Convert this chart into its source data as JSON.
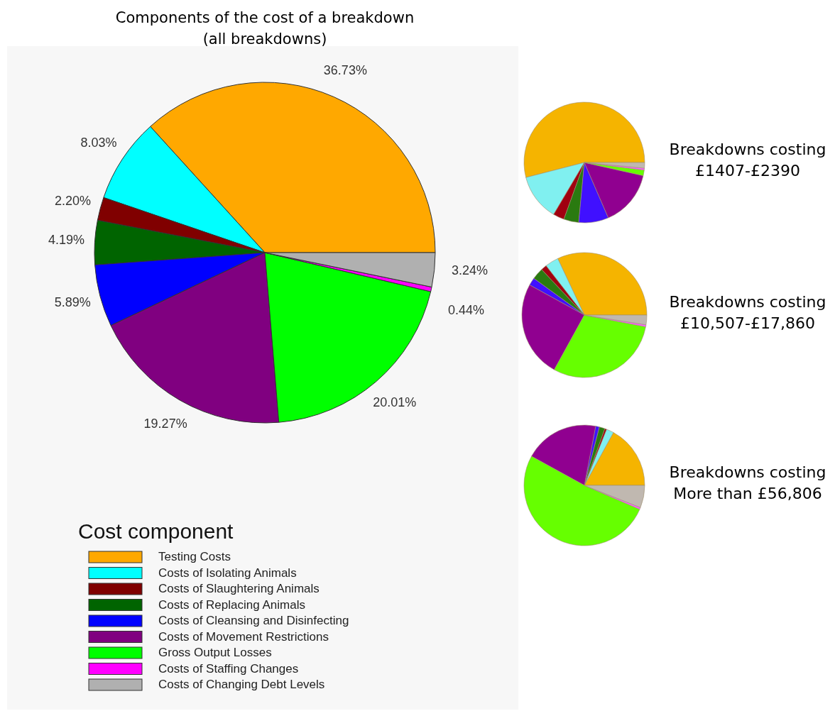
{
  "chart_data": [
    {
      "type": "pie",
      "title": "Components of the cost of a breakdown\n(all breakdowns)",
      "legend_title": "Cost component",
      "legend": "bottom left",
      "categories": [
        "Testing Costs",
        "Costs of Isolating Animals",
        "Costs of Slaughtering Animals",
        "Costs of Replacing Animals",
        "Costs of Cleansing and Disinfecting",
        "Costs of Movement Restrictions",
        "Gross Output Losses",
        "Costs of Staffing Changes",
        "Costs of Changing Debt Levels"
      ],
      "values": [
        36.73,
        8.03,
        2.2,
        4.19,
        5.89,
        19.27,
        20.01,
        0.44,
        3.24
      ],
      "value_labels": [
        "36.73%",
        "8.03%",
        "2.20%",
        "4.19%",
        "5.89%",
        "19.27%",
        "20.01%",
        "0.44%",
        "3.24%"
      ],
      "colors": [
        "#ffa800",
        "#00ffff",
        "#800000",
        "#006400",
        "#0000ff",
        "#800080",
        "#00ff00",
        "#ff00ff",
        "#b0b0b0"
      ]
    },
    {
      "type": "pie",
      "title": "Breakdowns costing\n£1407-£2390",
      "categories": [
        null,
        null,
        null,
        null,
        null,
        null,
        null,
        null,
        null
      ],
      "values": [
        54,
        12.5,
        3,
        4,
        8,
        15,
        1.5,
        0.5,
        1.5
      ],
      "colors": [
        "#f5b400",
        "#80f0f0",
        "#a00010",
        "#2a7a10",
        "#4010ff",
        "#900090",
        "#66ff00",
        "#ff60ff",
        "#c0b8b0"
      ]
    },
    {
      "type": "pie",
      "title": "Breakdowns costing\n£10,507-£17,860",
      "categories": [
        null,
        null,
        null,
        null,
        null,
        null,
        null,
        null,
        null
      ],
      "values": [
        32,
        3.5,
        1.5,
        3,
        2,
        25,
        30,
        0.5,
        2.5
      ],
      "colors": [
        "#f5b400",
        "#80f0f0",
        "#a00010",
        "#2a7a10",
        "#4010ff",
        "#900090",
        "#66ff00",
        "#ff60ff",
        "#c0b8b0"
      ]
    },
    {
      "type": "pie",
      "title": "Breakdowns costing\nMore than £56,806",
      "categories": [
        null,
        null,
        null,
        null,
        null,
        null,
        null,
        null,
        null
      ],
      "values": [
        17,
        2,
        0.5,
        1.5,
        1,
        20,
        51.5,
        0.5,
        6
      ],
      "colors": [
        "#f5b400",
        "#80f0f0",
        "#a00010",
        "#2a7a10",
        "#4010ff",
        "#900090",
        "#66ff00",
        "#ff60ff",
        "#c0b8b0"
      ]
    }
  ]
}
